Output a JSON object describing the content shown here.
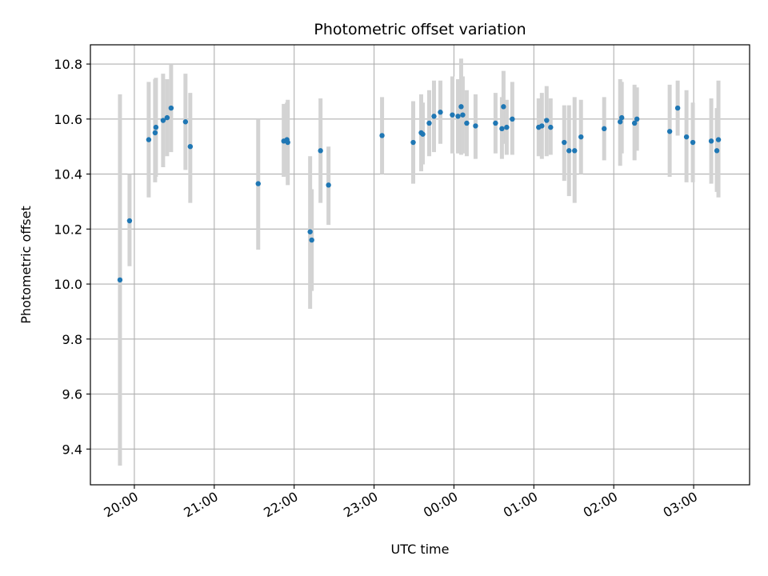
{
  "chart_data": {
    "type": "scatter",
    "title": "Photometric offset variation",
    "xlabel": "UTC time",
    "ylabel": "Photometric offset",
    "x_unit": "UTC time, hours after 00:00 (negative = previous evening)",
    "xlim": [
      -4.55,
      3.7
    ],
    "ylim": [
      9.27,
      10.87
    ],
    "grid": true,
    "x_ticks": [
      {
        "value": -4,
        "label": "20:00"
      },
      {
        "value": -3,
        "label": "21:00"
      },
      {
        "value": -2,
        "label": "22:00"
      },
      {
        "value": -1,
        "label": "23:00"
      },
      {
        "value": 0,
        "label": "00:00"
      },
      {
        "value": 1,
        "label": "01:00"
      },
      {
        "value": 2,
        "label": "02:00"
      },
      {
        "value": 3,
        "label": "03:00"
      }
    ],
    "y_ticks": [
      {
        "value": 9.4,
        "label": "9.4"
      },
      {
        "value": 9.6,
        "label": "9.6"
      },
      {
        "value": 9.8,
        "label": "9.8"
      },
      {
        "value": 10.0,
        "label": "10.0"
      },
      {
        "value": 10.2,
        "label": "10.2"
      },
      {
        "value": 10.4,
        "label": "10.4"
      },
      {
        "value": 10.6,
        "label": "10.6"
      },
      {
        "value": 10.8,
        "label": "10.8"
      }
    ],
    "series": [
      {
        "marker_color": "#1f77b4",
        "errorbar_color": "#d3d3d3",
        "points": [
          {
            "x": -4.18,
            "y": 10.015,
            "lo": 9.34,
            "hi": 10.69
          },
          {
            "x": -4.06,
            "y": 10.23,
            "lo": 10.065,
            "hi": 10.4
          },
          {
            "x": -3.82,
            "y": 10.525,
            "lo": 10.315,
            "hi": 10.735
          },
          {
            "x": -3.74,
            "y": 10.55,
            "lo": 10.37,
            "hi": 10.745
          },
          {
            "x": -3.73,
            "y": 10.57,
            "lo": 10.39,
            "hi": 10.75
          },
          {
            "x": -3.64,
            "y": 10.595,
            "lo": 10.425,
            "hi": 10.765
          },
          {
            "x": -3.59,
            "y": 10.605,
            "lo": 10.465,
            "hi": 10.745
          },
          {
            "x": -3.54,
            "y": 10.64,
            "lo": 10.48,
            "hi": 10.8
          },
          {
            "x": -3.36,
            "y": 10.59,
            "lo": 10.415,
            "hi": 10.765
          },
          {
            "x": -3.3,
            "y": 10.5,
            "lo": 10.295,
            "hi": 10.695
          },
          {
            "x": -2.45,
            "y": 10.365,
            "lo": 10.125,
            "hi": 10.6
          },
          {
            "x": -2.13,
            "y": 10.52,
            "lo": 10.39,
            "hi": 10.655
          },
          {
            "x": -2.09,
            "y": 10.525,
            "lo": 10.395,
            "hi": 10.66
          },
          {
            "x": -2.08,
            "y": 10.515,
            "lo": 10.36,
            "hi": 10.67
          },
          {
            "x": -1.8,
            "y": 10.19,
            "lo": 9.91,
            "hi": 10.465
          },
          {
            "x": -1.78,
            "y": 10.16,
            "lo": 9.975,
            "hi": 10.345
          },
          {
            "x": -1.67,
            "y": 10.485,
            "lo": 10.295,
            "hi": 10.675
          },
          {
            "x": -1.57,
            "y": 10.36,
            "lo": 10.215,
            "hi": 10.5
          },
          {
            "x": -0.9,
            "y": 10.54,
            "lo": 10.4,
            "hi": 10.68
          },
          {
            "x": -0.51,
            "y": 10.515,
            "lo": 10.365,
            "hi": 10.665
          },
          {
            "x": -0.41,
            "y": 10.55,
            "lo": 10.41,
            "hi": 10.69
          },
          {
            "x": -0.39,
            "y": 10.545,
            "lo": 10.435,
            "hi": 10.66
          },
          {
            "x": -0.31,
            "y": 10.585,
            "lo": 10.465,
            "hi": 10.705
          },
          {
            "x": -0.25,
            "y": 10.61,
            "lo": 10.48,
            "hi": 10.74
          },
          {
            "x": -0.17,
            "y": 10.625,
            "lo": 10.51,
            "hi": 10.74
          },
          {
            "x": -0.02,
            "y": 10.615,
            "lo": 10.475,
            "hi": 10.755
          },
          {
            "x": 0.05,
            "y": 10.61,
            "lo": 10.475,
            "hi": 10.745
          },
          {
            "x": 0.09,
            "y": 10.645,
            "lo": 10.47,
            "hi": 10.82
          },
          {
            "x": 0.11,
            "y": 10.615,
            "lo": 10.475,
            "hi": 10.755
          },
          {
            "x": 0.16,
            "y": 10.585,
            "lo": 10.465,
            "hi": 10.705
          },
          {
            "x": 0.27,
            "y": 10.575,
            "lo": 10.455,
            "hi": 10.69
          },
          {
            "x": 0.52,
            "y": 10.585,
            "lo": 10.475,
            "hi": 10.695
          },
          {
            "x": 0.6,
            "y": 10.565,
            "lo": 10.455,
            "hi": 10.68
          },
          {
            "x": 0.62,
            "y": 10.645,
            "lo": 10.51,
            "hi": 10.775
          },
          {
            "x": 0.66,
            "y": 10.57,
            "lo": 10.47,
            "hi": 10.67
          },
          {
            "x": 0.73,
            "y": 10.6,
            "lo": 10.47,
            "hi": 10.735
          },
          {
            "x": 1.06,
            "y": 10.57,
            "lo": 10.465,
            "hi": 10.675
          },
          {
            "x": 1.1,
            "y": 10.575,
            "lo": 10.455,
            "hi": 10.695
          },
          {
            "x": 1.16,
            "y": 10.595,
            "lo": 10.465,
            "hi": 10.72
          },
          {
            "x": 1.21,
            "y": 10.57,
            "lo": 10.47,
            "hi": 10.675
          },
          {
            "x": 1.38,
            "y": 10.515,
            "lo": 10.375,
            "hi": 10.65
          },
          {
            "x": 1.44,
            "y": 10.485,
            "lo": 10.32,
            "hi": 10.65
          },
          {
            "x": 1.51,
            "y": 10.485,
            "lo": 10.295,
            "hi": 10.68
          },
          {
            "x": 1.59,
            "y": 10.535,
            "lo": 10.4,
            "hi": 10.67
          },
          {
            "x": 1.88,
            "y": 10.565,
            "lo": 10.45,
            "hi": 10.68
          },
          {
            "x": 2.08,
            "y": 10.59,
            "lo": 10.43,
            "hi": 10.745
          },
          {
            "x": 2.1,
            "y": 10.605,
            "lo": 10.475,
            "hi": 10.735
          },
          {
            "x": 2.26,
            "y": 10.585,
            "lo": 10.45,
            "hi": 10.725
          },
          {
            "x": 2.29,
            "y": 10.6,
            "lo": 10.485,
            "hi": 10.715
          },
          {
            "x": 2.7,
            "y": 10.555,
            "lo": 10.39,
            "hi": 10.725
          },
          {
            "x": 2.8,
            "y": 10.64,
            "lo": 10.54,
            "hi": 10.74
          },
          {
            "x": 2.91,
            "y": 10.535,
            "lo": 10.37,
            "hi": 10.705
          },
          {
            "x": 2.99,
            "y": 10.515,
            "lo": 10.37,
            "hi": 10.66
          },
          {
            "x": 3.22,
            "y": 10.52,
            "lo": 10.365,
            "hi": 10.675
          },
          {
            "x": 3.29,
            "y": 10.485,
            "lo": 10.335,
            "hi": 10.64
          },
          {
            "x": 3.31,
            "y": 10.525,
            "lo": 10.315,
            "hi": 10.74
          }
        ]
      }
    ]
  }
}
